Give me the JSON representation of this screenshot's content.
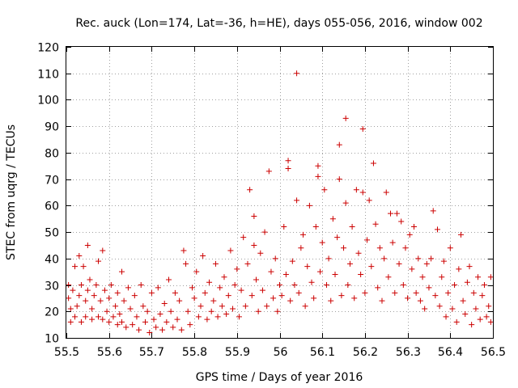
{
  "chart_data": {
    "type": "scatter",
    "title": "Rec. auck (Lon=174, Lat=-36, h=HE), days 055-056, 2016, window 002",
    "xlabel": "GPS time / Days of year 2016",
    "ylabel": "STEC from uqrg / TECUs",
    "xlim": [
      55.5,
      56.5
    ],
    "ylim": [
      10,
      120
    ],
    "xticks": [
      "55.5",
      "55.6",
      "55.7",
      "55.8",
      "55.9",
      "56",
      "56.1",
      "56.2",
      "56.3",
      "56.4",
      "56.5"
    ],
    "yticks": [
      "10",
      "20",
      "30",
      "40",
      "50",
      "60",
      "70",
      "80",
      "90",
      "100",
      "110",
      "120"
    ],
    "grid": true,
    "marker": "plus",
    "color": "#cc0000",
    "points": [
      [
        55.505,
        25
      ],
      [
        55.505,
        30
      ],
      [
        55.51,
        21
      ],
      [
        55.51,
        16
      ],
      [
        55.515,
        28
      ],
      [
        55.52,
        18
      ],
      [
        55.52,
        37
      ],
      [
        55.525,
        22
      ],
      [
        55.53,
        26
      ],
      [
        55.53,
        41
      ],
      [
        55.535,
        16
      ],
      [
        55.535,
        30
      ],
      [
        55.54,
        37
      ],
      [
        55.545,
        24
      ],
      [
        55.545,
        18
      ],
      [
        55.55,
        45
      ],
      [
        55.55,
        28
      ],
      [
        55.555,
        32
      ],
      [
        55.56,
        21
      ],
      [
        55.56,
        17
      ],
      [
        55.565,
        26
      ],
      [
        55.57,
        30
      ],
      [
        55.575,
        39
      ],
      [
        55.575,
        18
      ],
      [
        55.58,
        24
      ],
      [
        55.585,
        43
      ],
      [
        55.585,
        17
      ],
      [
        55.59,
        28
      ],
      [
        55.595,
        20
      ],
      [
        55.6,
        25
      ],
      [
        55.6,
        16
      ],
      [
        55.605,
        30
      ],
      [
        55.61,
        18
      ],
      [
        55.615,
        22
      ],
      [
        55.62,
        15
      ],
      [
        55.62,
        27
      ],
      [
        55.625,
        19
      ],
      [
        55.63,
        35
      ],
      [
        55.63,
        16
      ],
      [
        55.635,
        24
      ],
      [
        55.64,
        14
      ],
      [
        55.645,
        29
      ],
      [
        55.65,
        21
      ],
      [
        55.655,
        15
      ],
      [
        55.66,
        26
      ],
      [
        55.665,
        18
      ],
      [
        55.67,
        13
      ],
      [
        55.675,
        30
      ],
      [
        55.68,
        22
      ],
      [
        55.685,
        16
      ],
      [
        55.69,
        20
      ],
      [
        55.695,
        12
      ],
      [
        55.7,
        27
      ],
      [
        55.705,
        17
      ],
      [
        55.71,
        14
      ],
      [
        55.715,
        29
      ],
      [
        55.72,
        19
      ],
      [
        55.725,
        13
      ],
      [
        55.73,
        23
      ],
      [
        55.735,
        16
      ],
      [
        55.74,
        32
      ],
      [
        55.745,
        20
      ],
      [
        55.75,
        14
      ],
      [
        55.755,
        27
      ],
      [
        55.76,
        17
      ],
      [
        55.765,
        24
      ],
      [
        55.77,
        13
      ],
      [
        55.775,
        43
      ],
      [
        55.78,
        38
      ],
      [
        55.785,
        20
      ],
      [
        55.79,
        15
      ],
      [
        55.795,
        29
      ],
      [
        55.8,
        25
      ],
      [
        55.805,
        35
      ],
      [
        55.81,
        18
      ],
      [
        55.815,
        22
      ],
      [
        55.82,
        41
      ],
      [
        55.825,
        27
      ],
      [
        55.83,
        17
      ],
      [
        55.835,
        31
      ],
      [
        55.84,
        20
      ],
      [
        55.845,
        24
      ],
      [
        55.85,
        38
      ],
      [
        55.855,
        18
      ],
      [
        55.86,
        29
      ],
      [
        55.865,
        22
      ],
      [
        55.87,
        33
      ],
      [
        55.875,
        19
      ],
      [
        55.88,
        26
      ],
      [
        55.885,
        43
      ],
      [
        55.89,
        21
      ],
      [
        55.895,
        30
      ],
      [
        55.9,
        36
      ],
      [
        55.905,
        18
      ],
      [
        55.91,
        28
      ],
      [
        55.915,
        48
      ],
      [
        55.92,
        22
      ],
      [
        55.925,
        38
      ],
      [
        55.93,
        66
      ],
      [
        55.935,
        26
      ],
      [
        55.94,
        56
      ],
      [
        55.94,
        45
      ],
      [
        55.945,
        32
      ],
      [
        55.95,
        20
      ],
      [
        55.955,
        42
      ],
      [
        55.96,
        28
      ],
      [
        55.965,
        50
      ],
      [
        55.97,
        22
      ],
      [
        55.975,
        73
      ],
      [
        55.98,
        35
      ],
      [
        55.985,
        25
      ],
      [
        55.99,
        40
      ],
      [
        55.995,
        20
      ],
      [
        56.0,
        30
      ],
      [
        56.005,
        26
      ],
      [
        56.01,
        52
      ],
      [
        56.015,
        34
      ],
      [
        56.02,
        77
      ],
      [
        56.02,
        74
      ],
      [
        56.025,
        24
      ],
      [
        56.03,
        39
      ],
      [
        56.035,
        30
      ],
      [
        56.04,
        110
      ],
      [
        56.04,
        62
      ],
      [
        56.045,
        27
      ],
      [
        56.05,
        44
      ],
      [
        56.055,
        49
      ],
      [
        56.06,
        22
      ],
      [
        56.065,
        37
      ],
      [
        56.07,
        60
      ],
      [
        56.075,
        31
      ],
      [
        56.08,
        25
      ],
      [
        56.085,
        52
      ],
      [
        56.09,
        75
      ],
      [
        56.09,
        71
      ],
      [
        56.095,
        35
      ],
      [
        56.1,
        46
      ],
      [
        56.105,
        66
      ],
      [
        56.11,
        30
      ],
      [
        56.115,
        40
      ],
      [
        56.12,
        24
      ],
      [
        56.125,
        55
      ],
      [
        56.13,
        34
      ],
      [
        56.135,
        48
      ],
      [
        56.14,
        83
      ],
      [
        56.14,
        70
      ],
      [
        56.145,
        26
      ],
      [
        56.15,
        44
      ],
      [
        56.155,
        93
      ],
      [
        56.155,
        61
      ],
      [
        56.16,
        30
      ],
      [
        56.165,
        38
      ],
      [
        56.17,
        52
      ],
      [
        56.175,
        25
      ],
      [
        56.18,
        66
      ],
      [
        56.185,
        42
      ],
      [
        56.19,
        34
      ],
      [
        56.195,
        89
      ],
      [
        56.195,
        65
      ],
      [
        56.2,
        27
      ],
      [
        56.205,
        47
      ],
      [
        56.21,
        62
      ],
      [
        56.215,
        37
      ],
      [
        56.22,
        76
      ],
      [
        56.225,
        53
      ],
      [
        56.23,
        29
      ],
      [
        56.235,
        44
      ],
      [
        56.24,
        24
      ],
      [
        56.245,
        40
      ],
      [
        56.25,
        65
      ],
      [
        56.255,
        33
      ],
      [
        56.26,
        57
      ],
      [
        56.265,
        46
      ],
      [
        56.27,
        27
      ],
      [
        56.275,
        57
      ],
      [
        56.28,
        38
      ],
      [
        56.285,
        54
      ],
      [
        56.29,
        30
      ],
      [
        56.295,
        44
      ],
      [
        56.3,
        25
      ],
      [
        56.305,
        49
      ],
      [
        56.31,
        36
      ],
      [
        56.315,
        52
      ],
      [
        56.32,
        27
      ],
      [
        56.325,
        40
      ],
      [
        56.33,
        24
      ],
      [
        56.335,
        33
      ],
      [
        56.34,
        21
      ],
      [
        56.345,
        38
      ],
      [
        56.35,
        29
      ],
      [
        56.355,
        40
      ],
      [
        56.36,
        58
      ],
      [
        56.365,
        26
      ],
      [
        56.37,
        51
      ],
      [
        56.375,
        22
      ],
      [
        56.38,
        33
      ],
      [
        56.385,
        39
      ],
      [
        56.39,
        18
      ],
      [
        56.395,
        27
      ],
      [
        56.4,
        44
      ],
      [
        56.405,
        21
      ],
      [
        56.41,
        30
      ],
      [
        56.415,
        16
      ],
      [
        56.42,
        36
      ],
      [
        56.425,
        49
      ],
      [
        56.43,
        24
      ],
      [
        56.435,
        19
      ],
      [
        56.44,
        31
      ],
      [
        56.445,
        37
      ],
      [
        56.45,
        15
      ],
      [
        56.455,
        27
      ],
      [
        56.46,
        21
      ],
      [
        56.465,
        33
      ],
      [
        56.47,
        17
      ],
      [
        56.475,
        26
      ],
      [
        56.48,
        30
      ],
      [
        56.485,
        18
      ],
      [
        56.49,
        22
      ],
      [
        56.495,
        16
      ],
      [
        56.495,
        33
      ]
    ]
  }
}
